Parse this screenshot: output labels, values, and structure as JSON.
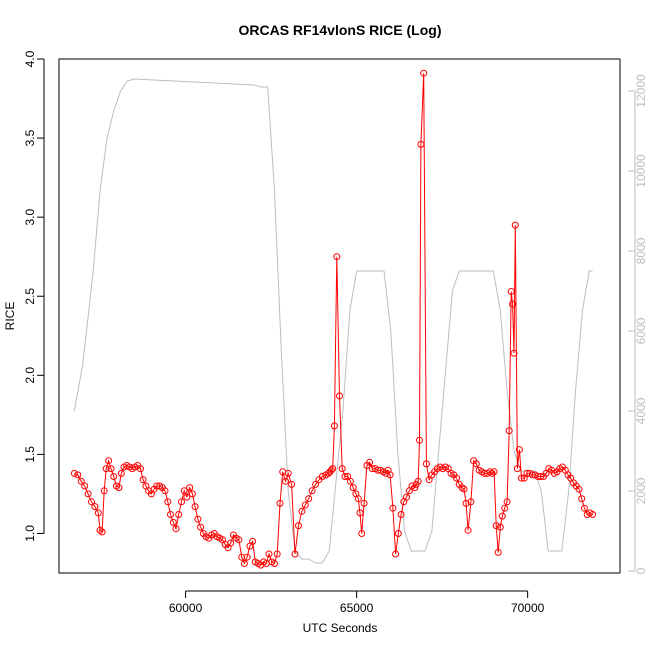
{
  "chart_data": {
    "type": "line",
    "title": "ORCAS RF14vlonS RICE (Log)",
    "xlabel": "UTC Seconds",
    "ylabel": "RICE",
    "xlim": [
      56300,
      72700
    ],
    "ylim": [
      0.75,
      4.0
    ],
    "y2lim": [
      -50,
      12800
    ],
    "x_ticks": [
      60000,
      65000,
      70000
    ],
    "y_ticks": [
      1.0,
      1.5,
      2.0,
      2.5,
      3.0,
      3.5,
      4.0
    ],
    "y2_ticks": [
      0,
      2000,
      4000,
      6000,
      8000,
      10000,
      12000
    ],
    "series": [
      {
        "color": "#ff0000",
        "axis": "left",
        "style": "line+points",
        "x": [
          56750,
          56850,
          56950,
          57050,
          57150,
          57250,
          57350,
          57450,
          57500,
          57560,
          57620,
          57680,
          57750,
          57820,
          57900,
          57980,
          58050,
          58120,
          58200,
          58280,
          58360,
          58440,
          58520,
          58600,
          58680,
          58760,
          58840,
          58920,
          59000,
          59080,
          59160,
          59240,
          59320,
          59400,
          59480,
          59560,
          59640,
          59720,
          59800,
          59880,
          59960,
          60040,
          60120,
          60200,
          60280,
          60360,
          60440,
          60520,
          60600,
          60680,
          60760,
          60840,
          60920,
          61000,
          61080,
          61160,
          61240,
          61320,
          61400,
          61480,
          61560,
          61640,
          61720,
          61800,
          61880,
          61960,
          62040,
          62120,
          62200,
          62280,
          62360,
          62440,
          62520,
          62600,
          62680,
          62760,
          62840,
          62920,
          63000,
          63100,
          63200,
          63300,
          63400,
          63500,
          63600,
          63700,
          63800,
          63900,
          64000,
          64100,
          64180,
          64220,
          64260,
          64300,
          64350,
          64420,
          64500,
          64580,
          64660,
          64740,
          64820,
          64900,
          64980,
          65050,
          65100,
          65150,
          65220,
          65300,
          65380,
          65460,
          65540,
          65620,
          65700,
          65780,
          65860,
          65920,
          65980,
          66060,
          66140,
          66220,
          66300,
          66380,
          66460,
          66540,
          66620,
          66700,
          66740,
          66800,
          66840,
          66880,
          66960,
          67040,
          67120,
          67200,
          67280,
          67360,
          67440,
          67520,
          67600,
          67680,
          67760,
          67840,
          67920,
          68000,
          68080,
          68140,
          68200,
          68260,
          68340,
          68420,
          68500,
          68580,
          68660,
          68740,
          68820,
          68900,
          68960,
          69020,
          69080,
          69140,
          69200,
          69260,
          69330,
          69400,
          69460,
          69520,
          69560,
          69600,
          69640,
          69700,
          69760,
          69820,
          69900,
          69980,
          70060,
          70140,
          70220,
          70300,
          70380,
          70460,
          70540,
          70620,
          70700,
          70780,
          70860,
          70940,
          71020,
          71100,
          71180,
          71260,
          71340,
          71420,
          71500,
          71580,
          71660,
          71740,
          71820,
          71900
        ],
        "y": [
          1.38,
          1.37,
          1.33,
          1.3,
          1.25,
          1.2,
          1.17,
          1.13,
          1.02,
          1.01,
          1.27,
          1.41,
          1.46,
          1.41,
          1.36,
          1.3,
          1.29,
          1.38,
          1.42,
          1.43,
          1.42,
          1.41,
          1.42,
          1.43,
          1.41,
          1.34,
          1.3,
          1.27,
          1.25,
          1.28,
          1.3,
          1.3,
          1.29,
          1.27,
          1.2,
          1.12,
          1.07,
          1.03,
          1.12,
          1.2,
          1.27,
          1.23,
          1.29,
          1.25,
          1.17,
          1.09,
          1.04,
          1.0,
          0.98,
          0.97,
          0.99,
          1.0,
          0.98,
          0.97,
          0.96,
          0.93,
          0.91,
          0.94,
          0.99,
          0.97,
          0.96,
          0.85,
          0.81,
          0.85,
          0.92,
          0.95,
          0.82,
          0.81,
          0.8,
          0.82,
          0.81,
          0.87,
          0.82,
          0.81,
          0.87,
          1.19,
          1.39,
          1.33,
          1.38,
          1.31,
          0.87,
          1.05,
          1.14,
          1.18,
          1.22,
          1.27,
          1.31,
          1.34,
          1.36,
          1.37,
          1.38,
          1.39,
          1.4,
          1.41,
          1.68,
          2.75,
          1.87,
          1.41,
          1.36,
          1.36,
          1.33,
          1.29,
          1.25,
          1.22,
          1.13,
          1.0,
          1.19,
          1.43,
          1.45,
          1.41,
          1.41,
          1.4,
          1.4,
          1.39,
          1.38,
          1.4,
          1.37,
          1.16,
          0.87,
          1.0,
          1.12,
          1.2,
          1.23,
          1.27,
          1.3,
          1.29,
          1.31,
          1.33,
          1.59,
          3.46,
          3.91,
          1.44,
          1.34,
          1.37,
          1.39,
          1.41,
          1.42,
          1.41,
          1.42,
          1.41,
          1.38,
          1.37,
          1.35,
          1.31,
          1.29,
          1.28,
          1.19,
          1.02,
          1.2,
          1.46,
          1.44,
          1.4,
          1.39,
          1.38,
          1.38,
          1.39,
          1.38,
          1.39,
          1.05,
          0.88,
          1.04,
          1.11,
          1.16,
          1.2,
          1.65,
          2.53,
          2.45,
          2.14,
          2.95,
          1.41,
          1.53,
          1.35,
          1.35,
          1.38,
          1.38,
          1.37,
          1.37,
          1.36,
          1.36,
          1.36,
          1.38,
          1.41,
          1.4,
          1.38,
          1.39,
          1.41,
          1.42,
          1.4,
          1.37,
          1.35,
          1.32,
          1.3,
          1.28,
          1.22,
          1.16,
          1.12,
          1.13,
          1.12
        ]
      },
      {
        "color": "#bebebe",
        "axis": "right",
        "style": "line",
        "x": [
          56750,
          57000,
          57300,
          57500,
          57700,
          57900,
          58100,
          58300,
          58500,
          62000,
          62200,
          62400,
          62600,
          62800,
          63000,
          63200,
          63400,
          63600,
          63800,
          64000,
          64200,
          64600,
          64800,
          65000,
          65200,
          65800,
          66000,
          66200,
          66400,
          66600,
          66800,
          67000,
          67200,
          67400,
          67800,
          68000,
          68200,
          68400,
          69000,
          69200,
          69400,
          69600,
          69800,
          70000,
          70200,
          70400,
          70600,
          70800,
          71000,
          71200,
          71400,
          71600,
          71800,
          71900
        ],
        "y": [
          4000,
          5200,
          7500,
          9500,
          10800,
          11500,
          12000,
          12250,
          12300,
          12150,
          12100,
          12100,
          9500,
          5500,
          2000,
          500,
          300,
          300,
          200,
          200,
          500,
          4000,
          6500,
          7500,
          7500,
          7500,
          6000,
          3000,
          1000,
          500,
          500,
          500,
          1000,
          3000,
          7000,
          7500,
          7500,
          7500,
          7500,
          6500,
          4500,
          3000,
          2500,
          2500,
          2500,
          2000,
          500,
          500,
          500,
          2000,
          4500,
          6500,
          7500,
          7500
        ]
      }
    ]
  }
}
